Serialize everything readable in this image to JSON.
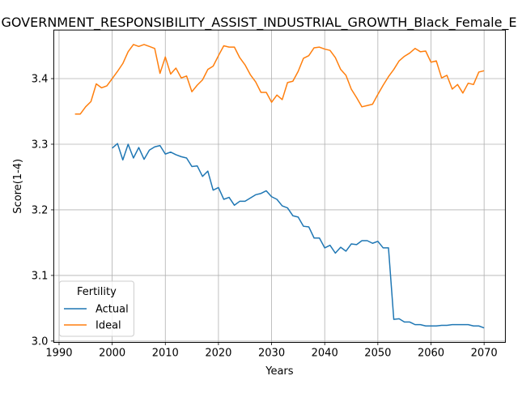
{
  "chart_data": {
    "type": "line",
    "title": "GOVERNMENT_RESPONSIBILITY_ASSIST_INDUSTRIAL_GROWTH_Black_Female_E",
    "xlabel": "Years",
    "ylabel": "Score(1-4)",
    "xlim": [
      1989,
      2074
    ],
    "ylim": [
      2.998,
      3.474
    ],
    "xticks": [
      1990,
      2000,
      2010,
      2020,
      2030,
      2040,
      2050,
      2060,
      2070
    ],
    "yticks": [
      3.0,
      3.1,
      3.2,
      3.3,
      3.4
    ],
    "ytick_labels": [
      "3.0",
      "3.1",
      "3.2",
      "3.3",
      "3.4"
    ],
    "grid": true,
    "legend": {
      "title": "Fertility",
      "placement": "lower-left"
    },
    "colors": {
      "Actual": "#1f77b4",
      "Ideal": "#ff7f0e"
    },
    "series": [
      {
        "name": "Actual",
        "x": [
          2000,
          2001,
          2002,
          2003,
          2004,
          2005,
          2006,
          2007,
          2008,
          2009,
          2010,
          2011,
          2012,
          2013,
          2014,
          2015,
          2016,
          2017,
          2018,
          2019,
          2020,
          2021,
          2022,
          2023,
          2024,
          2025,
          2026,
          2027,
          2028,
          2029,
          2030,
          2031,
          2032,
          2033,
          2034,
          2035,
          2036,
          2037,
          2038,
          2039,
          2040,
          2041,
          2042,
          2043,
          2044,
          2045,
          2046,
          2047,
          2048,
          2049,
          2050,
          2051,
          2052,
          2053,
          2054,
          2055,
          2056,
          2057,
          2058,
          2059,
          2060,
          2061,
          2062,
          2063,
          2064,
          2065,
          2066,
          2067,
          2068,
          2069,
          2070
        ],
        "values": [
          3.294,
          3.301,
          3.276,
          3.3,
          3.279,
          3.295,
          3.277,
          3.291,
          3.296,
          3.298,
          3.285,
          3.288,
          3.284,
          3.281,
          3.279,
          3.266,
          3.267,
          3.251,
          3.259,
          3.23,
          3.234,
          3.216,
          3.219,
          3.207,
          3.213,
          3.213,
          3.218,
          3.223,
          3.225,
          3.229,
          3.22,
          3.216,
          3.206,
          3.203,
          3.191,
          3.189,
          3.175,
          3.174,
          3.157,
          3.157,
          3.142,
          3.146,
          3.134,
          3.143,
          3.137,
          3.148,
          3.147,
          3.153,
          3.153,
          3.149,
          3.152,
          3.142,
          3.142,
          3.033,
          3.034,
          3.029,
          3.029,
          3.025,
          3.025,
          3.023,
          3.023,
          3.023,
          3.024,
          3.024,
          3.025,
          3.025,
          3.025,
          3.025,
          3.023,
          3.023,
          3.02
        ]
      },
      {
        "name": "Ideal",
        "x": [
          1993,
          1994,
          1995,
          1996,
          1997,
          1998,
          1999,
          2000,
          2001,
          2002,
          2003,
          2004,
          2005,
          2006,
          2007,
          2008,
          2009,
          2010,
          2011,
          2012,
          2013,
          2014,
          2015,
          2016,
          2017,
          2018,
          2019,
          2020,
          2021,
          2022,
          2023,
          2024,
          2025,
          2026,
          2027,
          2028,
          2029,
          2030,
          2031,
          2032,
          2033,
          2034,
          2035,
          2036,
          2037,
          2038,
          2039,
          2040,
          2041,
          2042,
          2043,
          2044,
          2045,
          2046,
          2047,
          2048,
          2049,
          2050,
          2051,
          2052,
          2053,
          2054,
          2055,
          2056,
          2057,
          2058,
          2059,
          2060,
          2061,
          2062,
          2063,
          2064,
          2065,
          2066,
          2067,
          2068,
          2069,
          2070
        ],
        "values": [
          3.346,
          3.346,
          3.357,
          3.365,
          3.392,
          3.386,
          3.389,
          3.4,
          3.411,
          3.423,
          3.441,
          3.452,
          3.449,
          3.452,
          3.449,
          3.446,
          3.408,
          3.433,
          3.407,
          3.416,
          3.401,
          3.404,
          3.38,
          3.39,
          3.398,
          3.414,
          3.419,
          3.435,
          3.45,
          3.448,
          3.448,
          3.432,
          3.421,
          3.406,
          3.395,
          3.379,
          3.379,
          3.364,
          3.375,
          3.368,
          3.394,
          3.396,
          3.411,
          3.431,
          3.435,
          3.447,
          3.448,
          3.445,
          3.443,
          3.432,
          3.414,
          3.405,
          3.384,
          3.371,
          3.357,
          3.359,
          3.361,
          3.376,
          3.39,
          3.403,
          3.414,
          3.427,
          3.434,
          3.439,
          3.446,
          3.441,
          3.442,
          3.425,
          3.427,
          3.401,
          3.405,
          3.384,
          3.391,
          3.378,
          3.393,
          3.391,
          3.41,
          3.412
        ]
      }
    ]
  }
}
